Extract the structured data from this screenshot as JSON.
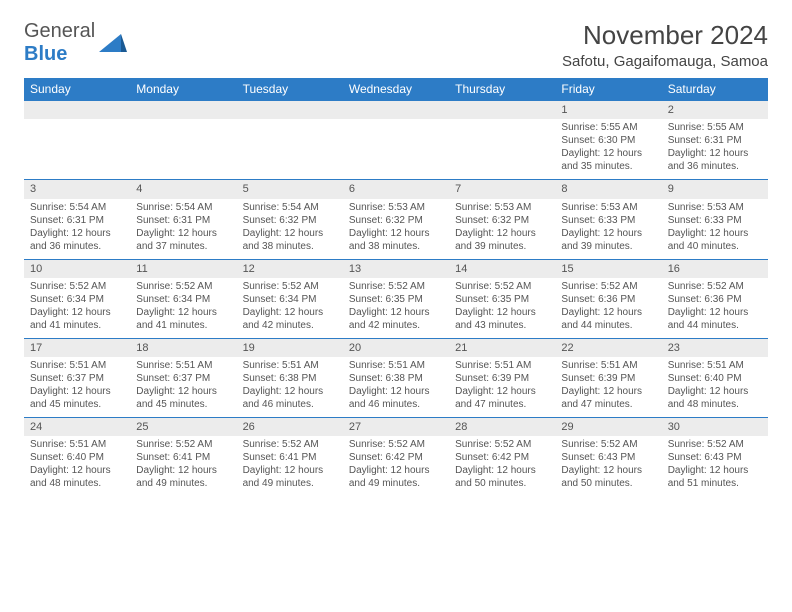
{
  "logo": {
    "word1": "General",
    "word2": "Blue"
  },
  "title": "November 2024",
  "location": "Safotu, Gagaifomauga, Samoa",
  "day_headers": [
    "Sunday",
    "Monday",
    "Tuesday",
    "Wednesday",
    "Thursday",
    "Friday",
    "Saturday"
  ],
  "header_bg": "#2d7cc6",
  "header_fg": "#ffffff",
  "daynum_bg": "#ececec",
  "border_color": "#2d7cc6",
  "weeks": [
    [
      null,
      null,
      null,
      null,
      null,
      {
        "n": "1",
        "sr": "Sunrise: 5:55 AM",
        "ss": "Sunset: 6:30 PM",
        "dl": "Daylight: 12 hours and 35 minutes."
      },
      {
        "n": "2",
        "sr": "Sunrise: 5:55 AM",
        "ss": "Sunset: 6:31 PM",
        "dl": "Daylight: 12 hours and 36 minutes."
      }
    ],
    [
      {
        "n": "3",
        "sr": "Sunrise: 5:54 AM",
        "ss": "Sunset: 6:31 PM",
        "dl": "Daylight: 12 hours and 36 minutes."
      },
      {
        "n": "4",
        "sr": "Sunrise: 5:54 AM",
        "ss": "Sunset: 6:31 PM",
        "dl": "Daylight: 12 hours and 37 minutes."
      },
      {
        "n": "5",
        "sr": "Sunrise: 5:54 AM",
        "ss": "Sunset: 6:32 PM",
        "dl": "Daylight: 12 hours and 38 minutes."
      },
      {
        "n": "6",
        "sr": "Sunrise: 5:53 AM",
        "ss": "Sunset: 6:32 PM",
        "dl": "Daylight: 12 hours and 38 minutes."
      },
      {
        "n": "7",
        "sr": "Sunrise: 5:53 AM",
        "ss": "Sunset: 6:32 PM",
        "dl": "Daylight: 12 hours and 39 minutes."
      },
      {
        "n": "8",
        "sr": "Sunrise: 5:53 AM",
        "ss": "Sunset: 6:33 PM",
        "dl": "Daylight: 12 hours and 39 minutes."
      },
      {
        "n": "9",
        "sr": "Sunrise: 5:53 AM",
        "ss": "Sunset: 6:33 PM",
        "dl": "Daylight: 12 hours and 40 minutes."
      }
    ],
    [
      {
        "n": "10",
        "sr": "Sunrise: 5:52 AM",
        "ss": "Sunset: 6:34 PM",
        "dl": "Daylight: 12 hours and 41 minutes."
      },
      {
        "n": "11",
        "sr": "Sunrise: 5:52 AM",
        "ss": "Sunset: 6:34 PM",
        "dl": "Daylight: 12 hours and 41 minutes."
      },
      {
        "n": "12",
        "sr": "Sunrise: 5:52 AM",
        "ss": "Sunset: 6:34 PM",
        "dl": "Daylight: 12 hours and 42 minutes."
      },
      {
        "n": "13",
        "sr": "Sunrise: 5:52 AM",
        "ss": "Sunset: 6:35 PM",
        "dl": "Daylight: 12 hours and 42 minutes."
      },
      {
        "n": "14",
        "sr": "Sunrise: 5:52 AM",
        "ss": "Sunset: 6:35 PM",
        "dl": "Daylight: 12 hours and 43 minutes."
      },
      {
        "n": "15",
        "sr": "Sunrise: 5:52 AM",
        "ss": "Sunset: 6:36 PM",
        "dl": "Daylight: 12 hours and 44 minutes."
      },
      {
        "n": "16",
        "sr": "Sunrise: 5:52 AM",
        "ss": "Sunset: 6:36 PM",
        "dl": "Daylight: 12 hours and 44 minutes."
      }
    ],
    [
      {
        "n": "17",
        "sr": "Sunrise: 5:51 AM",
        "ss": "Sunset: 6:37 PM",
        "dl": "Daylight: 12 hours and 45 minutes."
      },
      {
        "n": "18",
        "sr": "Sunrise: 5:51 AM",
        "ss": "Sunset: 6:37 PM",
        "dl": "Daylight: 12 hours and 45 minutes."
      },
      {
        "n": "19",
        "sr": "Sunrise: 5:51 AM",
        "ss": "Sunset: 6:38 PM",
        "dl": "Daylight: 12 hours and 46 minutes."
      },
      {
        "n": "20",
        "sr": "Sunrise: 5:51 AM",
        "ss": "Sunset: 6:38 PM",
        "dl": "Daylight: 12 hours and 46 minutes."
      },
      {
        "n": "21",
        "sr": "Sunrise: 5:51 AM",
        "ss": "Sunset: 6:39 PM",
        "dl": "Daylight: 12 hours and 47 minutes."
      },
      {
        "n": "22",
        "sr": "Sunrise: 5:51 AM",
        "ss": "Sunset: 6:39 PM",
        "dl": "Daylight: 12 hours and 47 minutes."
      },
      {
        "n": "23",
        "sr": "Sunrise: 5:51 AM",
        "ss": "Sunset: 6:40 PM",
        "dl": "Daylight: 12 hours and 48 minutes."
      }
    ],
    [
      {
        "n": "24",
        "sr": "Sunrise: 5:51 AM",
        "ss": "Sunset: 6:40 PM",
        "dl": "Daylight: 12 hours and 48 minutes."
      },
      {
        "n": "25",
        "sr": "Sunrise: 5:52 AM",
        "ss": "Sunset: 6:41 PM",
        "dl": "Daylight: 12 hours and 49 minutes."
      },
      {
        "n": "26",
        "sr": "Sunrise: 5:52 AM",
        "ss": "Sunset: 6:41 PM",
        "dl": "Daylight: 12 hours and 49 minutes."
      },
      {
        "n": "27",
        "sr": "Sunrise: 5:52 AM",
        "ss": "Sunset: 6:42 PM",
        "dl": "Daylight: 12 hours and 49 minutes."
      },
      {
        "n": "28",
        "sr": "Sunrise: 5:52 AM",
        "ss": "Sunset: 6:42 PM",
        "dl": "Daylight: 12 hours and 50 minutes."
      },
      {
        "n": "29",
        "sr": "Sunrise: 5:52 AM",
        "ss": "Sunset: 6:43 PM",
        "dl": "Daylight: 12 hours and 50 minutes."
      },
      {
        "n": "30",
        "sr": "Sunrise: 5:52 AM",
        "ss": "Sunset: 6:43 PM",
        "dl": "Daylight: 12 hours and 51 minutes."
      }
    ]
  ]
}
